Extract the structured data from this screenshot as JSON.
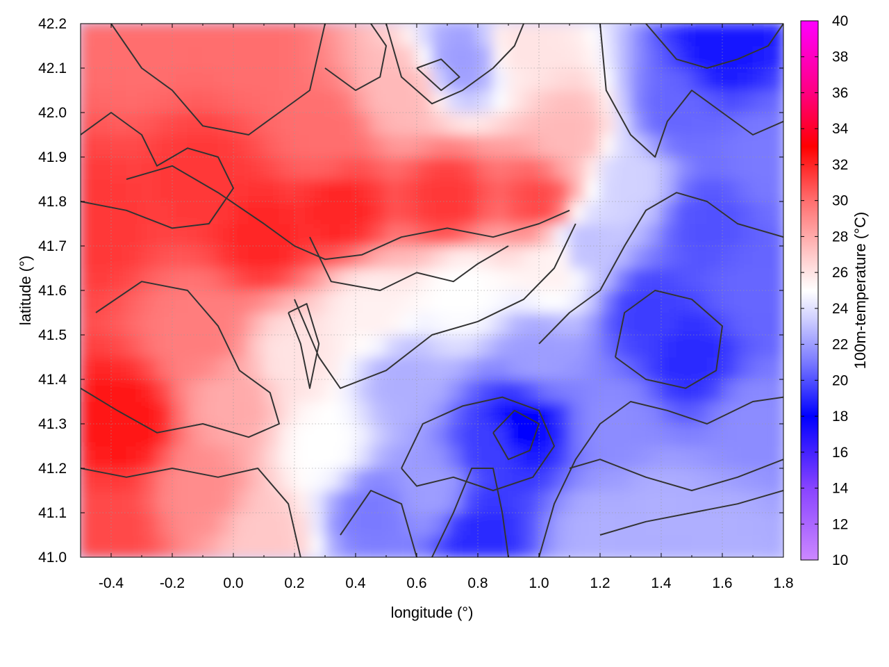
{
  "chart_data": {
    "type": "heatmap",
    "title": "",
    "xlabel": "longitude (°)",
    "ylabel": "latitude (°)",
    "xlim": [
      -0.5,
      1.8
    ],
    "ylim": [
      41.0,
      42.2
    ],
    "x_ticks": [
      -0.4,
      -0.2,
      0.0,
      0.2,
      0.4,
      0.6,
      0.8,
      1.0,
      1.2,
      1.4,
      1.6,
      1.8
    ],
    "x_tick_labels": [
      "-0.4",
      "-0.2",
      "0.0",
      "0.2",
      "0.4",
      "0.6",
      "0.8",
      "1.0",
      "1.2",
      "1.4",
      "1.6",
      "1.8"
    ],
    "y_ticks": [
      41.0,
      41.1,
      41.2,
      41.3,
      41.4,
      41.5,
      41.6,
      41.7,
      41.8,
      41.9,
      42.0,
      42.1,
      42.2
    ],
    "y_tick_labels": [
      "41.0",
      "41.1",
      "41.2",
      "41.3",
      "41.4",
      "41.5",
      "41.6",
      "41.7",
      "41.8",
      "41.9",
      "42.0",
      "42.1",
      "42.2"
    ],
    "grid": true,
    "colorbar": {
      "label": "100m-temperature (°C)",
      "range": [
        10,
        40
      ],
      "ticks": [
        10,
        12,
        14,
        16,
        18,
        20,
        22,
        24,
        26,
        28,
        30,
        32,
        34,
        36,
        38,
        40
      ],
      "tick_labels": [
        "10",
        "12",
        "14",
        "16",
        "18",
        "20",
        "22",
        "24",
        "26",
        "28",
        "30",
        "32",
        "34",
        "36",
        "38",
        "40"
      ],
      "color_stops": [
        {
          "value": 10,
          "color": "#cc88ff"
        },
        {
          "value": 14,
          "color": "#8844ff"
        },
        {
          "value": 18,
          "color": "#0000ff"
        },
        {
          "value": 21,
          "color": "#7a7aff"
        },
        {
          "value": 23.5,
          "color": "#d2d2ff"
        },
        {
          "value": 25,
          "color": "#ffffff"
        },
        {
          "value": 27,
          "color": "#ffc8c8"
        },
        {
          "value": 30,
          "color": "#ff6e6e"
        },
        {
          "value": 33,
          "color": "#ff0000"
        },
        {
          "value": 36,
          "color": "#ff0080"
        },
        {
          "value": 40,
          "color": "#ff00ff"
        }
      ]
    },
    "field_samples": [
      {
        "lon": -0.45,
        "lat": 41.75,
        "temp": 31.5
      },
      {
        "lon": -0.35,
        "lat": 41.3,
        "temp": 32.5
      },
      {
        "lon": -0.4,
        "lat": 41.05,
        "temp": 31.0
      },
      {
        "lon": -0.3,
        "lat": 42.15,
        "temp": 30.0
      },
      {
        "lon": -0.1,
        "lat": 41.85,
        "temp": 31.5
      },
      {
        "lon": 0.1,
        "lat": 41.72,
        "temp": 32.0
      },
      {
        "lon": 0.35,
        "lat": 41.78,
        "temp": 32.0
      },
      {
        "lon": 0.7,
        "lat": 41.8,
        "temp": 31.5
      },
      {
        "lon": 1.0,
        "lat": 41.8,
        "temp": 31.0
      },
      {
        "lon": 0.05,
        "lat": 42.15,
        "temp": 30.0
      },
      {
        "lon": 0.3,
        "lat": 41.95,
        "temp": 30.0
      },
      {
        "lon": 0.55,
        "lat": 42.05,
        "temp": 27.5
      },
      {
        "lon": 0.95,
        "lat": 42.15,
        "temp": 26.0
      },
      {
        "lon": 1.1,
        "lat": 41.95,
        "temp": 27.5
      },
      {
        "lon": -0.1,
        "lat": 41.5,
        "temp": 29.5
      },
      {
        "lon": 0.0,
        "lat": 41.35,
        "temp": 28.0
      },
      {
        "lon": -0.1,
        "lat": 41.15,
        "temp": 29.0
      },
      {
        "lon": 0.1,
        "lat": 41.05,
        "temp": 27.0
      },
      {
        "lon": 0.2,
        "lat": 41.45,
        "temp": 26.0
      },
      {
        "lon": 0.3,
        "lat": 41.25,
        "temp": 25.0
      },
      {
        "lon": 0.45,
        "lat": 41.55,
        "temp": 25.5
      },
      {
        "lon": 0.75,
        "lat": 41.6,
        "temp": 25.0
      },
      {
        "lon": 1.05,
        "lat": 41.65,
        "temp": 25.5
      },
      {
        "lon": 0.55,
        "lat": 41.4,
        "temp": 22.5
      },
      {
        "lon": 0.45,
        "lat": 41.1,
        "temp": 21.0
      },
      {
        "lon": 0.65,
        "lat": 41.15,
        "temp": 22.0
      },
      {
        "lon": 0.85,
        "lat": 41.25,
        "temp": 19.5
      },
      {
        "lon": 0.95,
        "lat": 41.3,
        "temp": 18.0
      },
      {
        "lon": 0.8,
        "lat": 41.05,
        "temp": 19.0
      },
      {
        "lon": 1.0,
        "lat": 41.45,
        "temp": 22.0
      },
      {
        "lon": 1.15,
        "lat": 41.7,
        "temp": 23.0
      },
      {
        "lon": 1.35,
        "lat": 41.55,
        "temp": 19.5
      },
      {
        "lon": 1.5,
        "lat": 41.45,
        "temp": 19.0
      },
      {
        "lon": 1.55,
        "lat": 41.75,
        "temp": 20.0
      },
      {
        "lon": 1.45,
        "lat": 42.0,
        "temp": 20.5
      },
      {
        "lon": 1.6,
        "lat": 42.15,
        "temp": 18.5
      },
      {
        "lon": 1.7,
        "lat": 41.6,
        "temp": 20.5
      },
      {
        "lon": 1.7,
        "lat": 41.3,
        "temp": 21.5
      },
      {
        "lon": 1.4,
        "lat": 41.1,
        "temp": 22.5
      },
      {
        "lon": 1.6,
        "lat": 41.05,
        "temp": 22.5
      },
      {
        "lon": 1.25,
        "lat": 41.3,
        "temp": 21.5
      },
      {
        "lon": 1.2,
        "lat": 41.05,
        "temp": 22.5
      },
      {
        "lon": 0.75,
        "lat": 42.12,
        "temp": 22.0
      },
      {
        "lon": 1.3,
        "lat": 41.85,
        "temp": 23.5
      },
      {
        "lon": 1.75,
        "lat": 41.9,
        "temp": 21.0
      }
    ],
    "contours": [
      [
        [
          -0.45,
          41.55
        ],
        [
          -0.3,
          41.62
        ],
        [
          -0.15,
          41.6
        ],
        [
          -0.05,
          41.52
        ],
        [
          0.02,
          41.42
        ],
        [
          0.12,
          41.37
        ],
        [
          0.15,
          41.3
        ],
        [
          0.05,
          41.27
        ],
        [
          -0.1,
          41.3
        ],
        [
          -0.25,
          41.28
        ],
        [
          -0.38,
          41.33
        ],
        [
          -0.5,
          41.38
        ]
      ],
      [
        [
          -0.5,
          41.2
        ],
        [
          -0.35,
          41.18
        ],
        [
          -0.2,
          41.2
        ],
        [
          -0.05,
          41.18
        ],
        [
          0.08,
          41.2
        ],
        [
          0.18,
          41.12
        ],
        [
          0.22,
          41.0
        ]
      ],
      [
        [
          -0.4,
          42.2
        ],
        [
          -0.3,
          42.1
        ],
        [
          -0.2,
          42.05
        ],
        [
          -0.1,
          41.97
        ],
        [
          0.05,
          41.95
        ],
        [
          0.15,
          42.0
        ],
        [
          0.25,
          42.05
        ],
        [
          0.3,
          42.2
        ]
      ],
      [
        [
          -0.35,
          41.85
        ],
        [
          -0.2,
          41.88
        ],
        [
          -0.05,
          41.82
        ],
        [
          0.1,
          41.75
        ],
        [
          0.2,
          41.7
        ],
        [
          0.3,
          41.67
        ],
        [
          0.42,
          41.68
        ],
        [
          0.55,
          41.72
        ],
        [
          0.7,
          41.74
        ],
        [
          0.85,
          41.72
        ],
        [
          1.0,
          41.75
        ],
        [
          1.1,
          41.78
        ]
      ],
      [
        [
          0.25,
          41.72
        ],
        [
          0.32,
          41.62
        ],
        [
          0.48,
          41.6
        ],
        [
          0.6,
          41.64
        ],
        [
          0.72,
          41.62
        ],
        [
          0.8,
          41.66
        ],
        [
          0.9,
          41.7
        ]
      ],
      [
        [
          0.2,
          41.58
        ],
        [
          0.28,
          41.45
        ],
        [
          0.35,
          41.38
        ],
        [
          0.5,
          41.42
        ],
        [
          0.65,
          41.5
        ],
        [
          0.8,
          41.53
        ],
        [
          0.95,
          41.58
        ],
        [
          1.05,
          41.65
        ],
        [
          1.12,
          41.75
        ]
      ],
      [
        [
          0.55,
          41.2
        ],
        [
          0.62,
          41.3
        ],
        [
          0.75,
          41.34
        ],
        [
          0.88,
          41.36
        ],
        [
          1.0,
          41.33
        ],
        [
          1.05,
          41.25
        ],
        [
          0.98,
          41.18
        ],
        [
          0.85,
          41.15
        ],
        [
          0.72,
          41.18
        ],
        [
          0.6,
          41.16
        ],
        [
          0.55,
          41.2
        ]
      ],
      [
        [
          0.85,
          41.28
        ],
        [
          0.92,
          41.33
        ],
        [
          1.0,
          41.3
        ],
        [
          0.97,
          41.24
        ],
        [
          0.9,
          41.22
        ],
        [
          0.85,
          41.28
        ]
      ],
      [
        [
          0.35,
          41.05
        ],
        [
          0.45,
          41.15
        ],
        [
          0.55,
          41.12
        ],
        [
          0.6,
          41.0
        ]
      ],
      [
        [
          0.65,
          41.0
        ],
        [
          0.72,
          41.1
        ],
        [
          0.78,
          41.2
        ],
        [
          0.85,
          41.2
        ],
        [
          0.88,
          41.1
        ],
        [
          0.9,
          41.0
        ]
      ],
      [
        [
          1.0,
          41.0
        ],
        [
          1.05,
          41.12
        ],
        [
          1.12,
          41.22
        ],
        [
          1.2,
          41.3
        ],
        [
          1.3,
          41.35
        ],
        [
          1.42,
          41.33
        ],
        [
          1.55,
          41.3
        ],
        [
          1.7,
          41.35
        ],
        [
          1.8,
          41.36
        ]
      ],
      [
        [
          1.0,
          41.48
        ],
        [
          1.1,
          41.55
        ],
        [
          1.2,
          41.6
        ],
        [
          1.28,
          41.7
        ],
        [
          1.35,
          41.78
        ],
        [
          1.45,
          41.82
        ],
        [
          1.55,
          41.8
        ],
        [
          1.65,
          41.75
        ],
        [
          1.8,
          41.72
        ]
      ],
      [
        [
          1.25,
          41.45
        ],
        [
          1.35,
          41.4
        ],
        [
          1.48,
          41.38
        ],
        [
          1.58,
          41.42
        ],
        [
          1.6,
          41.52
        ],
        [
          1.5,
          41.58
        ],
        [
          1.38,
          41.6
        ],
        [
          1.28,
          41.55
        ],
        [
          1.25,
          41.45
        ]
      ],
      [
        [
          1.2,
          42.2
        ],
        [
          1.22,
          42.05
        ],
        [
          1.3,
          41.95
        ],
        [
          1.38,
          41.9
        ],
        [
          1.42,
          41.98
        ],
        [
          1.5,
          42.05
        ],
        [
          1.6,
          42.0
        ],
        [
          1.7,
          41.95
        ],
        [
          1.8,
          41.98
        ]
      ],
      [
        [
          1.35,
          42.2
        ],
        [
          1.45,
          42.12
        ],
        [
          1.55,
          42.1
        ],
        [
          1.65,
          42.12
        ],
        [
          1.75,
          42.15
        ],
        [
          1.8,
          42.2
        ]
      ],
      [
        [
          0.5,
          42.2
        ],
        [
          0.55,
          42.08
        ],
        [
          0.65,
          42.02
        ],
        [
          0.75,
          42.05
        ],
        [
          0.85,
          42.1
        ],
        [
          0.92,
          42.15
        ],
        [
          0.95,
          42.2
        ]
      ],
      [
        [
          0.6,
          42.1
        ],
        [
          0.68,
          42.12
        ],
        [
          0.74,
          42.08
        ],
        [
          0.68,
          42.05
        ],
        [
          0.6,
          42.1
        ]
      ],
      [
        [
          0.3,
          42.1
        ],
        [
          0.4,
          42.05
        ],
        [
          0.48,
          42.08
        ],
        [
          0.5,
          42.15
        ],
        [
          0.45,
          42.2
        ]
      ],
      [
        [
          1.1,
          41.2
        ],
        [
          1.2,
          41.22
        ],
        [
          1.35,
          41.18
        ],
        [
          1.5,
          41.15
        ],
        [
          1.65,
          41.18
        ],
        [
          1.8,
          41.22
        ]
      ],
      [
        [
          1.2,
          41.05
        ],
        [
          1.35,
          41.08
        ],
        [
          1.5,
          41.1
        ],
        [
          1.65,
          41.12
        ],
        [
          1.8,
          41.15
        ]
      ],
      [
        [
          -0.5,
          41.95
        ],
        [
          -0.4,
          42.0
        ],
        [
          -0.3,
          41.95
        ],
        [
          -0.25,
          41.88
        ],
        [
          -0.15,
          41.92
        ],
        [
          -0.05,
          41.9
        ],
        [
          0.0,
          41.83
        ],
        [
          -0.08,
          41.75
        ],
        [
          -0.2,
          41.74
        ],
        [
          -0.35,
          41.78
        ],
        [
          -0.5,
          41.8
        ]
      ],
      [
        [
          0.18,
          41.55
        ],
        [
          0.22,
          41.48
        ],
        [
          0.25,
          41.38
        ],
        [
          0.28,
          41.48
        ],
        [
          0.24,
          41.57
        ],
        [
          0.18,
          41.55
        ]
      ]
    ]
  }
}
